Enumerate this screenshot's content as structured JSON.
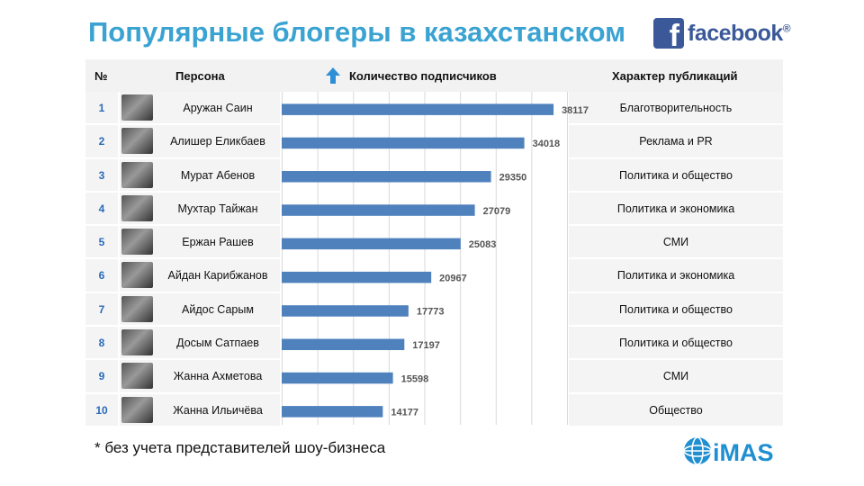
{
  "title": "Популярные блогеры в казахстанском",
  "brand": {
    "fb_letter": "f",
    "fb_word": "facebook",
    "fb_mark": "®",
    "imas_word": "iMAS"
  },
  "table": {
    "headers": {
      "num": "№",
      "person": "Персона",
      "count": "Количество подписчиков",
      "type": "Характер публикаций"
    }
  },
  "footnote": "* без учета представителей шоу-бизнеса",
  "colors": {
    "title": "#3aa3d2",
    "bar": "#4f81bd",
    "row_number": "#2a6ab8",
    "facebook": "#3b5998"
  },
  "chart_data": {
    "type": "bar",
    "orientation": "horizontal",
    "ylabel": "Количество подписчиков",
    "xlim": [
      0,
      40000
    ],
    "grid": true,
    "categories": [
      "Аружан Саин",
      "Алишер Еликбаев",
      "Мурат Абенов",
      "Мухтар Тайжан",
      "Ержан Рашев",
      "Айдан Карибжанов",
      "Айдос Сарым",
      "Досым Сатпаев",
      "Жанна Ахметова",
      "Жанна Ильичёва"
    ],
    "values": [
      38117,
      34018,
      29350,
      27079,
      25083,
      20967,
      17773,
      17197,
      15598,
      14177
    ],
    "rows": [
      {
        "num": "1",
        "name": "Аружан Саин",
        "value": 38117,
        "value_label": "38117",
        "type": "Благотворительность"
      },
      {
        "num": "2",
        "name": "Алишер Еликбаев",
        "value": 34018,
        "value_label": "34018",
        "type": "Реклама и PR"
      },
      {
        "num": "3",
        "name": "Мурат Абенов",
        "value": 29350,
        "value_label": "29350",
        "type": "Политика и общество"
      },
      {
        "num": "4",
        "name": "Мухтар Тайжан",
        "value": 27079,
        "value_label": "27079",
        "type": "Политика и экономика"
      },
      {
        "num": "5",
        "name": "Ержан Рашев",
        "value": 25083,
        "value_label": "25083",
        "type": "СМИ"
      },
      {
        "num": "6",
        "name": "Айдан Карибжанов",
        "value": 20967,
        "value_label": "20967",
        "type": "Политика и экономика"
      },
      {
        "num": "7",
        "name": "Айдос Сарым",
        "value": 17773,
        "value_label": "17773",
        "type": "Политика и общество"
      },
      {
        "num": "8",
        "name": "Досым Сатпаев",
        "value": 17197,
        "value_label": "17197",
        "type": "Политика и общество"
      },
      {
        "num": "9",
        "name": "Жанна Ахметова",
        "value": 15598,
        "value_label": "15598",
        "type": "СМИ"
      },
      {
        "num": "10",
        "name": "Жанна Ильичёва",
        "value": 14177,
        "value_label": "14177",
        "type": "Общество"
      }
    ]
  }
}
